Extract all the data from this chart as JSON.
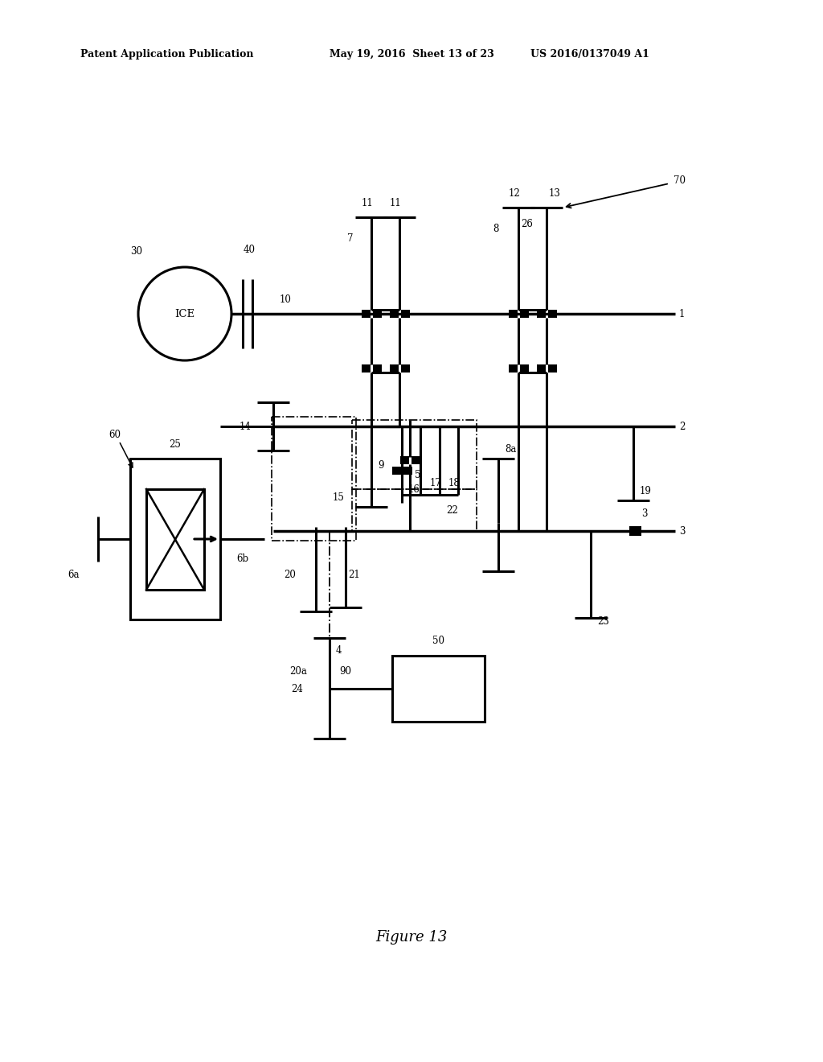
{
  "bg_color": "#ffffff",
  "lc": "#000000",
  "header_left": "Patent Application Publication",
  "header_mid": "May 19, 2016  Sheet 13 of 23",
  "header_right": "US 2016/0137049 A1",
  "fig_label": "Figure 13"
}
